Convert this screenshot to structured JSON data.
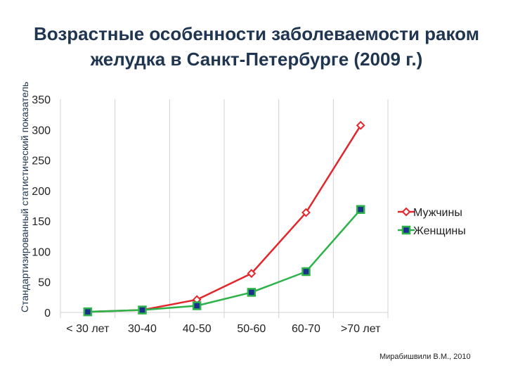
{
  "chart_data": {
    "type": "line",
    "title_line1": "Возрастные особенности заболеваемости раком",
    "title_line2": "желудка в Санкт-Петербурге (2009 г.)",
    "ylabel": "Стандартизированный статистический показатель",
    "xlabel": "",
    "categories": [
      "< 30 лет",
      "30-40",
      "40-50",
      "50-60",
      "60-70",
      ">70 лет"
    ],
    "yticks": [
      0,
      50,
      100,
      150,
      200,
      250,
      300,
      350
    ],
    "ylim": [
      0,
      350
    ],
    "grid": "vertical",
    "legend_position": "right",
    "series": [
      {
        "name": "Мужчины",
        "color": "#e3262b",
        "marker": "diamond-open",
        "values": [
          1,
          4,
          21,
          64,
          164,
          307
        ]
      },
      {
        "name": "Женщины",
        "color": "#2db34a",
        "marker": "square-filled",
        "values": [
          1,
          4,
          11,
          33,
          67,
          169
        ]
      }
    ]
  },
  "credit": "Мирабишвили В.М., 2010",
  "colors": {
    "title": "#1f3550",
    "grid": "#d0d0d0",
    "marker_fill_women": "#1b2f8c"
  }
}
